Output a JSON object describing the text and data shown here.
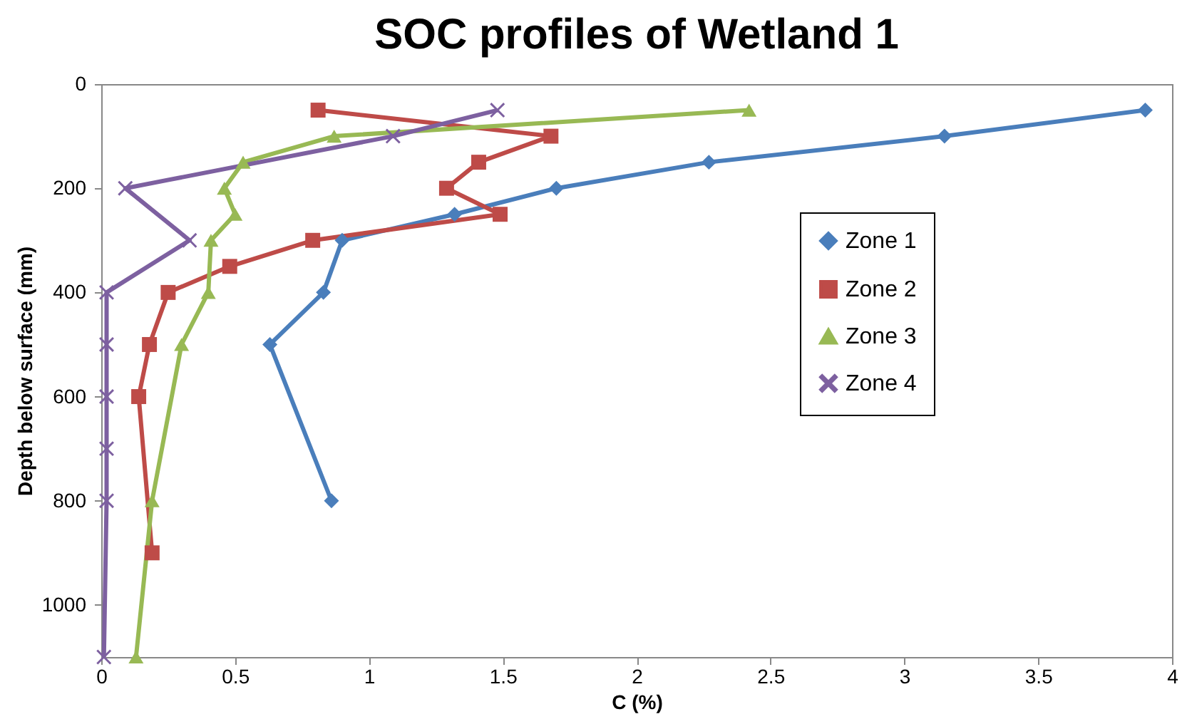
{
  "chart_data": {
    "type": "line",
    "title": "SOC profiles of Wetland 1",
    "xlabel": "C (%)",
    "ylabel": "Depth below surface (mm)",
    "xlim": [
      0,
      4
    ],
    "xticks": [
      0,
      0.5,
      1,
      1.5,
      2,
      2.5,
      3,
      3.5,
      4
    ],
    "ylim": [
      1100,
      0
    ],
    "yticks": [
      0,
      200,
      400,
      600,
      800,
      1000
    ],
    "grid": false,
    "legend": "right",
    "line_style": "solid",
    "series": [
      {
        "name": "Zone 1",
        "color": "#4a7ebb",
        "marker": "diamond",
        "x": [
          3.9,
          3.15,
          2.27,
          1.7,
          1.32,
          0.9,
          0.83,
          0.63,
          0.86
        ],
        "values": [
          50,
          100,
          150,
          200,
          250,
          300,
          400,
          500,
          800
        ]
      },
      {
        "name": "Zone 2",
        "color": "#be4b48",
        "marker": "square",
        "x": [
          0.81,
          1.68,
          1.41,
          1.29,
          1.49,
          0.79,
          0.48,
          0.25,
          0.18,
          0.14,
          0.19
        ],
        "values": [
          50,
          100,
          150,
          200,
          250,
          300,
          350,
          400,
          500,
          600,
          900
        ]
      },
      {
        "name": "Zone 3",
        "color": "#98b954",
        "marker": "triangle",
        "x": [
          2.42,
          0.87,
          0.53,
          0.46,
          0.5,
          0.41,
          0.4,
          0.3,
          0.19,
          0.13
        ],
        "values": [
          50,
          100,
          150,
          200,
          250,
          300,
          400,
          500,
          800,
          1100
        ]
      },
      {
        "name": "Zone 4",
        "color": "#7d60a0",
        "marker": "cross",
        "x": [
          1.48,
          1.09,
          0.09,
          0.33,
          0.02,
          0.02,
          0.02,
          0.02,
          0.02,
          0.01
        ],
        "values": [
          50,
          100,
          200,
          300,
          400,
          500,
          600,
          700,
          800,
          1100
        ]
      }
    ]
  }
}
